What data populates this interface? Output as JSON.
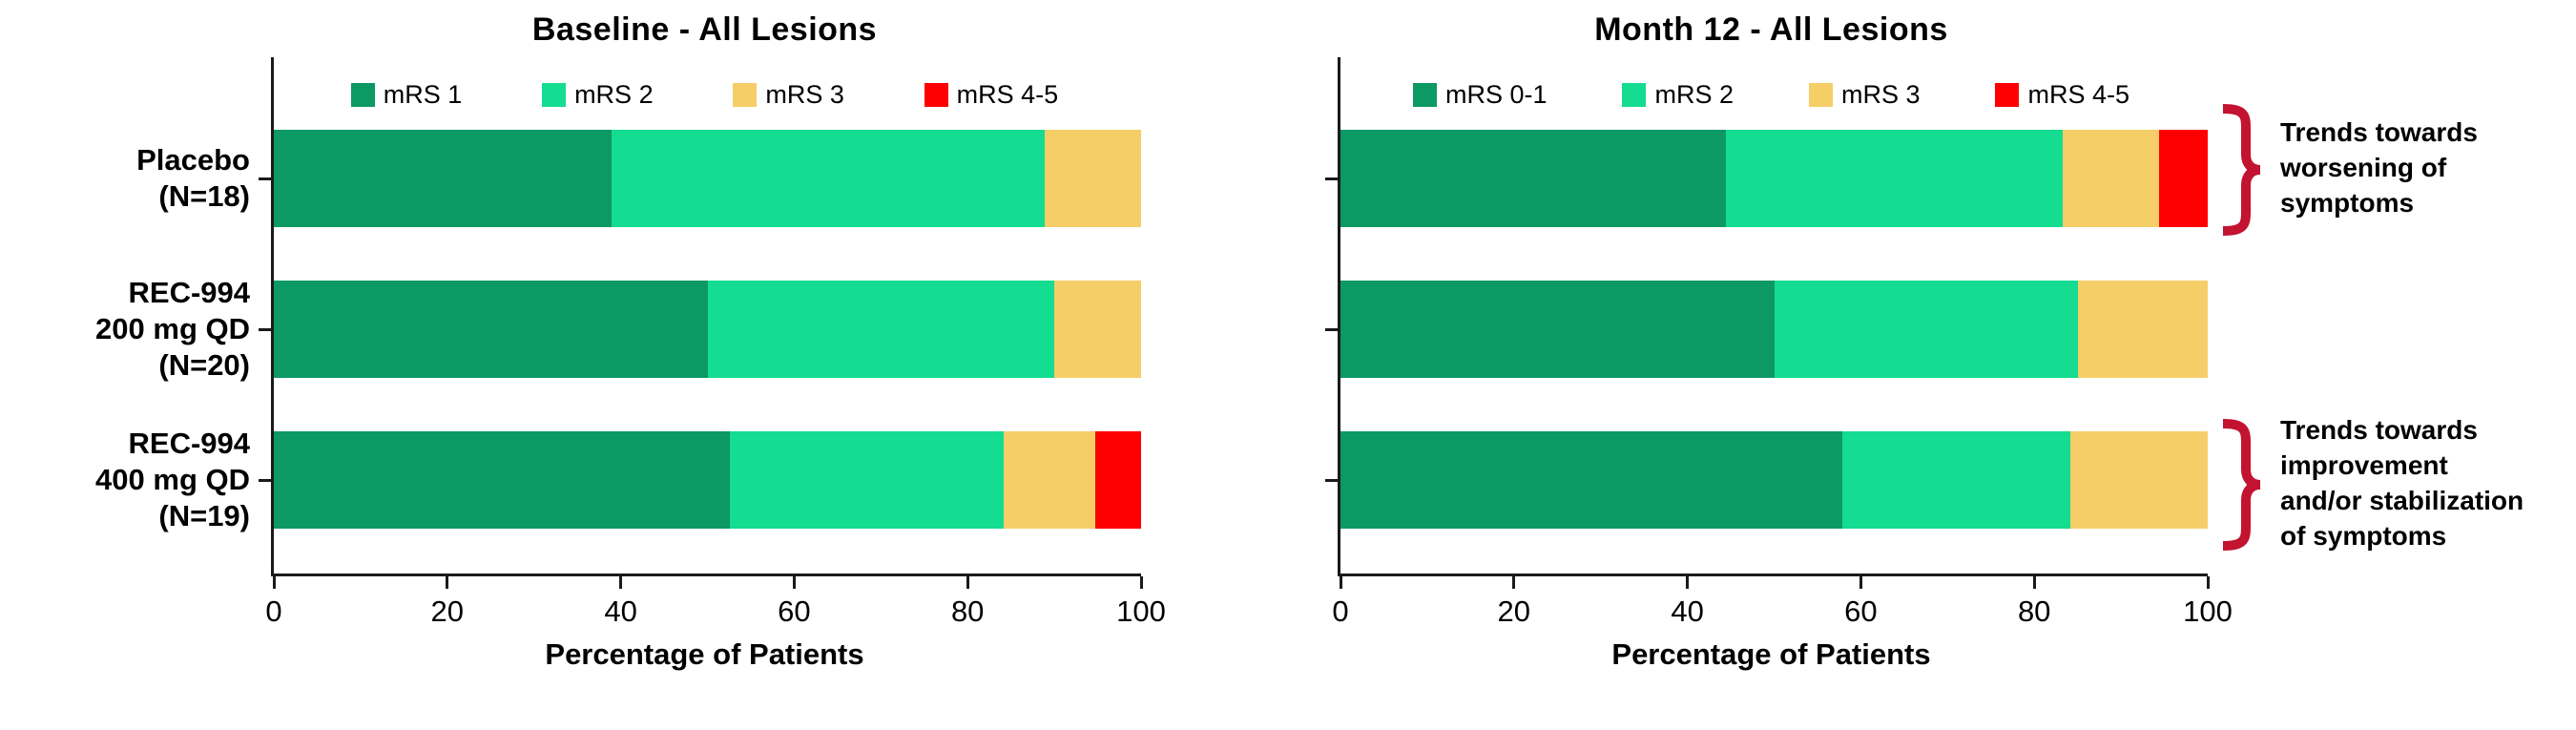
{
  "figure": {
    "background": "#ffffff",
    "axis_color": "#1a1a1a"
  },
  "colors": {
    "dark_green": "#0D9964",
    "spring_green": "#14DC90",
    "tan": "#F5CE68",
    "red": "#FF0000",
    "bracket_red": "#C21330"
  },
  "chart_data": [
    {
      "type": "bar",
      "orientation": "horizontal_stacked",
      "title": "Baseline - All Lesions",
      "xlabel": "Percentage of Patients",
      "xlim": [
        0,
        100
      ],
      "x_ticks": [
        0,
        20,
        40,
        60,
        80,
        100
      ],
      "grid": false,
      "legend_position": "top",
      "show_category_labels": true,
      "categories": [
        "Placebo\n(N=18)",
        "REC-994\n200 mg QD\n(N=20)",
        "REC-994\n400 mg QD\n(N=19)"
      ],
      "series": [
        {
          "name": "mRS 1",
          "color": "#0D9964",
          "values": [
            38.9,
            50.0,
            52.6
          ]
        },
        {
          "name": "mRS 2",
          "color": "#14DC90",
          "values": [
            50.0,
            40.0,
            31.6
          ]
        },
        {
          "name": "mRS 3",
          "color": "#F5CE68",
          "values": [
            11.1,
            10.0,
            10.5
          ]
        },
        {
          "name": "mRS 4-5",
          "color": "#FF0000",
          "values": [
            0.0,
            0.0,
            5.3
          ]
        }
      ]
    },
    {
      "type": "bar",
      "orientation": "horizontal_stacked",
      "title": "Month 12 - All Lesions",
      "xlabel": "Percentage of Patients",
      "xlim": [
        0,
        100
      ],
      "x_ticks": [
        0,
        20,
        40,
        60,
        80,
        100
      ],
      "grid": false,
      "legend_position": "top",
      "show_category_labels": false,
      "categories": [
        "Placebo\n(N=18)",
        "REC-994\n200 mg QD\n(N=20)",
        "REC-994\n400 mg QD\n(N=19)"
      ],
      "series": [
        {
          "name": "mRS 0-1",
          "color": "#0D9964",
          "values": [
            44.4,
            50.0,
            57.9
          ]
        },
        {
          "name": "mRS 2",
          "color": "#14DC90",
          "values": [
            38.9,
            35.0,
            26.3
          ]
        },
        {
          "name": "mRS 3",
          "color": "#F5CE68",
          "values": [
            11.1,
            15.0,
            15.8
          ]
        },
        {
          "name": "mRS 4-5",
          "color": "#FF0000",
          "values": [
            5.6,
            0.0,
            0.0
          ]
        }
      ]
    }
  ],
  "annotations": {
    "worsening": "Trends towards\nworsening of\nsymptoms",
    "improvement": "Trends towards\nimprovement\nand/or stabilization\nof symptoms"
  }
}
